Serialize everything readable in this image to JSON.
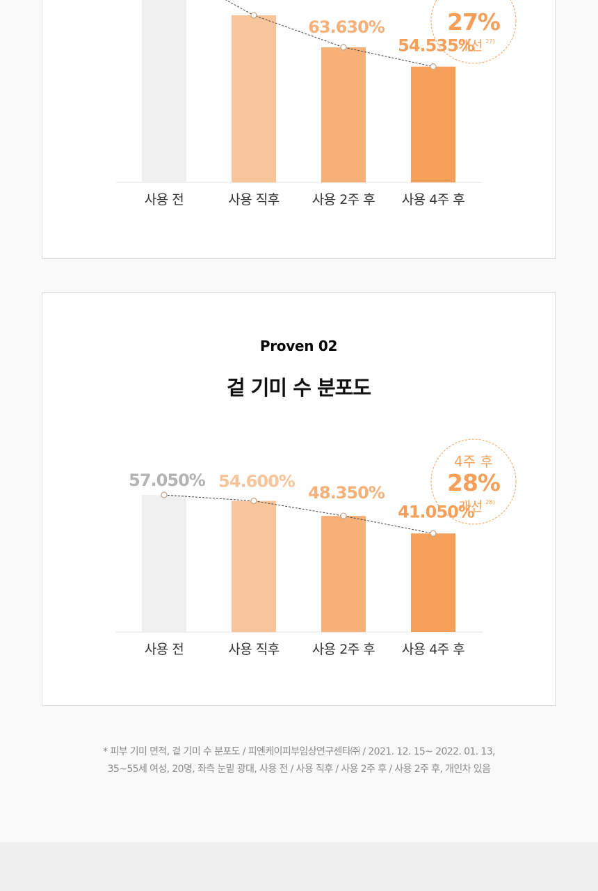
{
  "colors": {
    "accent": "#f5a05a",
    "before": "#f0f0f0",
    "after_immediate": "#f8c59a",
    "after_2w": "#f6b078",
    "after_4w": "#f5a05a",
    "label_gray": "#b3b3b3",
    "text": "#333333"
  },
  "charts": [
    {
      "chart_data": {
        "type": "bar",
        "categories": [
          "사용 전",
          "사용 직후",
          "사용 2주 후",
          "사용 4주 후"
        ],
        "values": [
          null,
          null,
          63.63,
          54.535
        ],
        "value_labels": [
          "",
          "",
          "63.630%",
          "54.535%"
        ],
        "ylim": [
          0,
          80
        ],
        "trend_line": true,
        "grid": false
      },
      "badge": {
        "top": "",
        "big": "27%",
        "bottom": "개선",
        "sup": "27)"
      }
    },
    {
      "proven": "Proven 02",
      "title": "겉 기미 수 분포도",
      "chart_data": {
        "type": "bar",
        "categories": [
          "사용 전",
          "사용 직후",
          "사용 2주 후",
          "사용 4주 후"
        ],
        "values": [
          57.05,
          54.6,
          48.35,
          41.05
        ],
        "value_labels": [
          "57.050%",
          "54.600%",
          "48.350%",
          "41.050%"
        ],
        "ylim": [
          0,
          93
        ],
        "trend_line": true,
        "grid": false
      },
      "badge": {
        "top": "4주 후",
        "big": "28%",
        "bottom": "개선",
        "sup": "28)"
      }
    }
  ],
  "footnote": [
    "* 피부 기미 면적, 겉 기미 수 분포도 / 피엔케이피부임상연구센타㈜ / 2021. 12. 15~ 2022. 01. 13,",
    "35~55세 여성, 20명, 좌측 눈밑 광대, 사용 전 / 사용 직후 / 사용 2주 후 / 사용 2주 후, 개인차 있음"
  ]
}
